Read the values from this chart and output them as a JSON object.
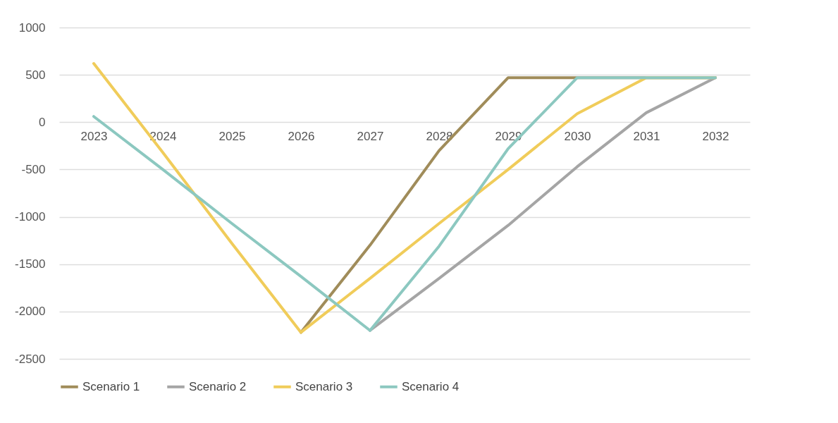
{
  "chart_data": {
    "type": "line",
    "categories": [
      "2023",
      "2024",
      "2025",
      "2026",
      "2027",
      "2028",
      "2029",
      "2030",
      "2031",
      "2032"
    ],
    "series": [
      {
        "name": "Scenario 1",
        "color": "#a08c5a",
        "values": [
          null,
          null,
          null,
          -2220,
          -1300,
          -300,
          470,
          470,
          470,
          470
        ]
      },
      {
        "name": "Scenario 2",
        "color": "#a5a5a5",
        "values": [
          null,
          null,
          null,
          null,
          -2200,
          -1650,
          -1090,
          -470,
          100,
          470
        ]
      },
      {
        "name": "Scenario 3",
        "color": "#f0cc5a",
        "values": [
          620,
          -320,
          -1280,
          -2220,
          -1650,
          -1070,
          -500,
          90,
          470,
          470
        ]
      },
      {
        "name": "Scenario  4",
        "color": "#8cc8c0",
        "values": [
          60,
          -500,
          -1070,
          -1630,
          -2200,
          -1310,
          -280,
          470,
          470,
          470
        ]
      }
    ],
    "ylim": [
      -2500,
      1000
    ],
    "yticks": [
      -2500,
      -2000,
      -1500,
      -1000,
      -500,
      0,
      500,
      1000
    ],
    "grid": "y",
    "legend": "bottom",
    "marker": "none",
    "line_style": "solid"
  }
}
